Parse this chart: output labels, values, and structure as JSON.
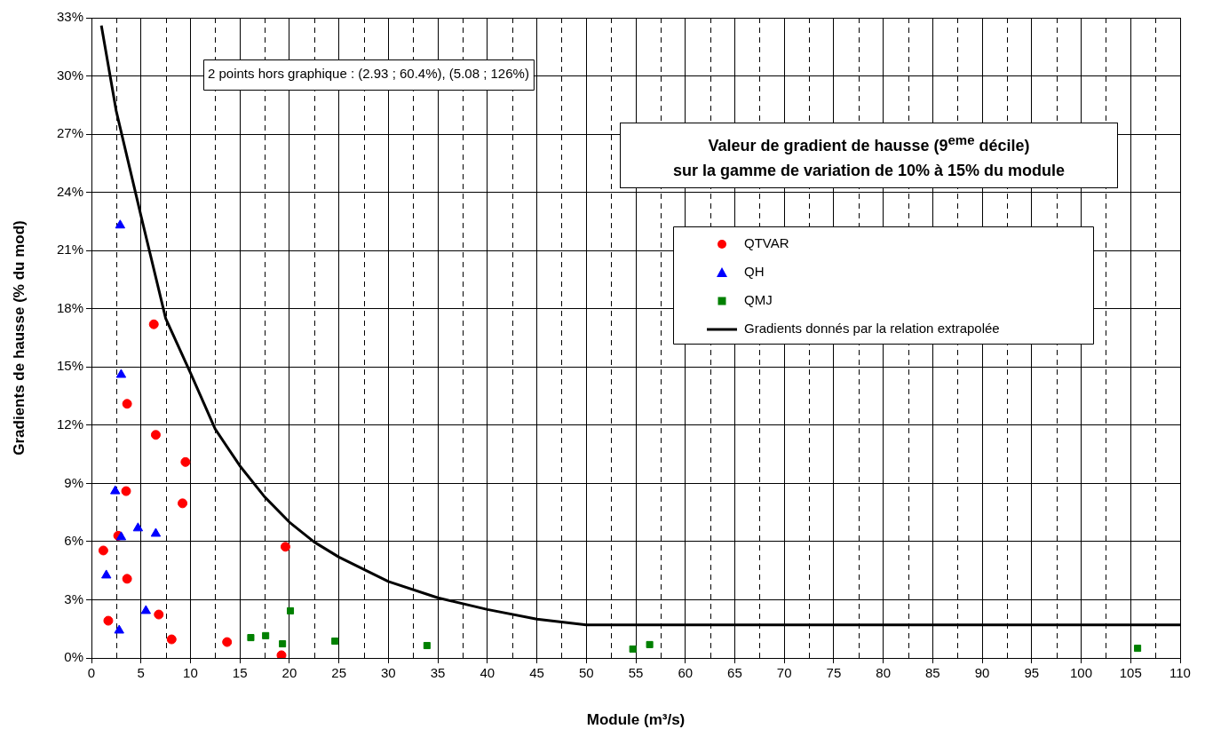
{
  "chart_data": {
    "type": "scatter",
    "title": "Valeur de gradient de hausse (9$^{eme}$ décile)",
    "subtitle": "sur la gamme de variation de 10% à 15% du module",
    "xlabel": "Module (m³/s)",
    "ylabel": "Gradients de hausse (% du mod)",
    "annotations": [
      "2 points hors graphique : (2.93 ; 60.4%), (5.08 ; 126%)"
    ],
    "xlim": [
      0,
      110
    ],
    "xticks": [
      0,
      5,
      10,
      15,
      20,
      25,
      30,
      35,
      40,
      45,
      50,
      55,
      60,
      65,
      70,
      75,
      80,
      85,
      90,
      95,
      100,
      105,
      110
    ],
    "ylim": [
      0,
      33
    ],
    "yticks": [
      {
        "value": 0,
        "label": "0%"
      },
      {
        "value": 3,
        "label": "3%"
      },
      {
        "value": 6,
        "label": "6%"
      },
      {
        "value": 9,
        "label": "9%"
      },
      {
        "value": 12,
        "label": "12%"
      },
      {
        "value": 15,
        "label": "15%"
      },
      {
        "value": 18,
        "label": "18%"
      },
      {
        "value": 21,
        "label": "21%"
      },
      {
        "value": 24,
        "label": "24%"
      },
      {
        "value": 27,
        "label": "27%"
      },
      {
        "value": 30,
        "label": "30%"
      },
      {
        "value": 33,
        "label": "33%"
      }
    ],
    "grid": true,
    "legend": "right",
    "series": [
      {
        "name": "QTVAR",
        "color": "#ff0000",
        "marker": "circle",
        "x": [
          6.3,
          3.6,
          6.5,
          9.5,
          3.5,
          9.2,
          2.7,
          1.2,
          3.6,
          1.7,
          6.8,
          8.1,
          13.7,
          19.2,
          19.6
        ],
        "values": [
          17.2,
          13.1,
          11.5,
          10.1,
          8.6,
          7.97,
          6.3,
          5.54,
          4.08,
          1.92,
          2.24,
          0.96,
          0.82,
          0.14,
          5.73
        ]
      },
      {
        "name": "QH",
        "color": "#0000ff",
        "marker": "triangle",
        "x": [
          2.9,
          3.0,
          2.4,
          4.7,
          3.0,
          6.5,
          1.5,
          5.5,
          2.8
        ],
        "values": [
          22.3,
          14.6,
          8.6,
          6.69,
          6.23,
          6.41,
          4.26,
          2.43,
          1.42
        ]
      },
      {
        "name": "QMJ",
        "color": "#008000",
        "marker": "square",
        "x": [
          16.1,
          17.6,
          19.3,
          20.1,
          24.6,
          33.9,
          54.7,
          56.4,
          105.7
        ],
        "values": [
          1.05,
          1.15,
          0.73,
          2.43,
          0.87,
          0.64,
          0.46,
          0.69,
          0.5
        ]
      },
      {
        "name": "Gradients donnés par la relation extrapolée",
        "type": "line",
        "color": "#000000",
        "marker": "none",
        "line_style": "solid",
        "x": [
          1,
          2.5,
          5,
          7.5,
          10,
          12.5,
          15,
          17.5,
          20,
          22.5,
          25,
          30,
          35,
          40,
          45,
          50,
          110
        ],
        "values": [
          32.6,
          28.2,
          22.8,
          17.5,
          14.7,
          11.8,
          9.9,
          8.3,
          7.0,
          5.98,
          5.2,
          3.94,
          3.1,
          2.5,
          2.0,
          1.7,
          1.7
        ]
      }
    ]
  }
}
